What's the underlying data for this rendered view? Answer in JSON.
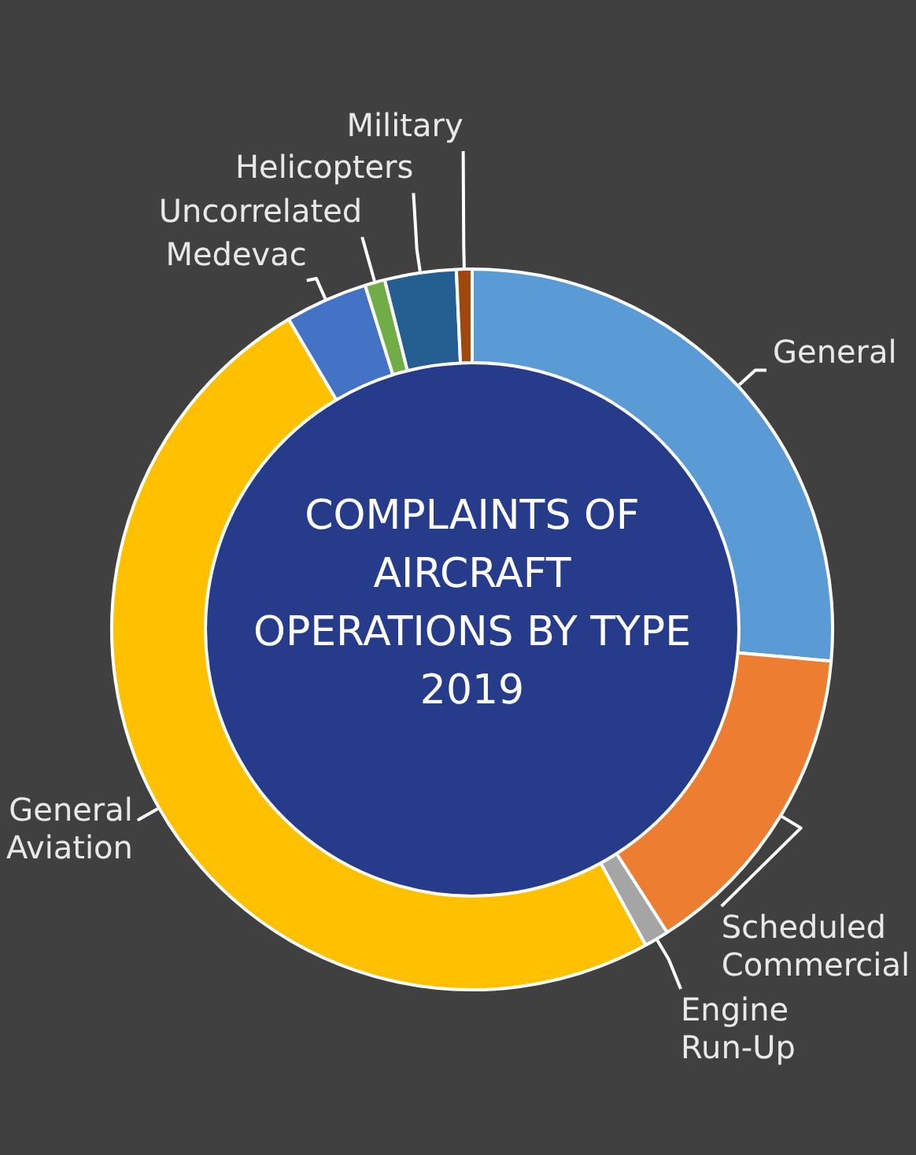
{
  "chart_data": {
    "type": "donut",
    "title": "COMPLAINTS OF AIRCRAFT OPERATIONS BY TYPE 2019",
    "categories": [
      "General",
      "Scheduled Commercial",
      "Engine Run-Up",
      "General Aviation",
      "Medevac",
      "Uncorrelated",
      "Helicopters",
      "Military"
    ],
    "values": [
      26.4,
      14.5,
      1.1,
      49.5,
      3.7,
      0.9,
      3.2,
      0.7
    ],
    "colors": [
      "#5b9bd5",
      "#ed7d31",
      "#a5a5a5",
      "#ffc000",
      "#4472c4",
      "#70ad47",
      "#255e91",
      "#9e480e"
    ]
  }
}
